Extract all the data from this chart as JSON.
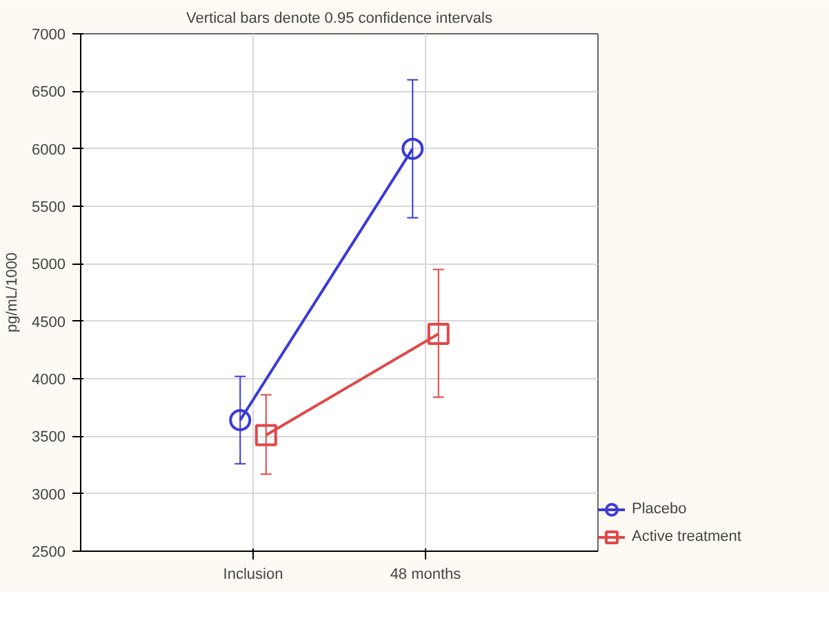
{
  "chart_data": {
    "type": "line",
    "title": "Vertical bars denote 0.95 confidence intervals",
    "ylabel": "pg/mL/1000",
    "categories": [
      "Inclusion",
      "48 months"
    ],
    "series": [
      {
        "name": "Placebo",
        "color": "#3a3ad6",
        "marker": "circle",
        "values": [
          3640,
          6000
        ],
        "errors": [
          [
            3260,
            4020
          ],
          [
            5400,
            6600
          ]
        ]
      },
      {
        "name": "Active treatment",
        "color": "#e04848",
        "marker": "square",
        "values": [
          3510,
          4390
        ],
        "errors": [
          [
            3170,
            3860
          ],
          [
            3840,
            4950
          ]
        ]
      }
    ],
    "ylim": [
      2500,
      7000
    ],
    "yticks": [
      2500,
      3000,
      3500,
      4000,
      4500,
      5000,
      5500,
      6000,
      6500,
      7000
    ],
    "grid": true,
    "legend": "bottom right",
    "line_style": "solid"
  }
}
